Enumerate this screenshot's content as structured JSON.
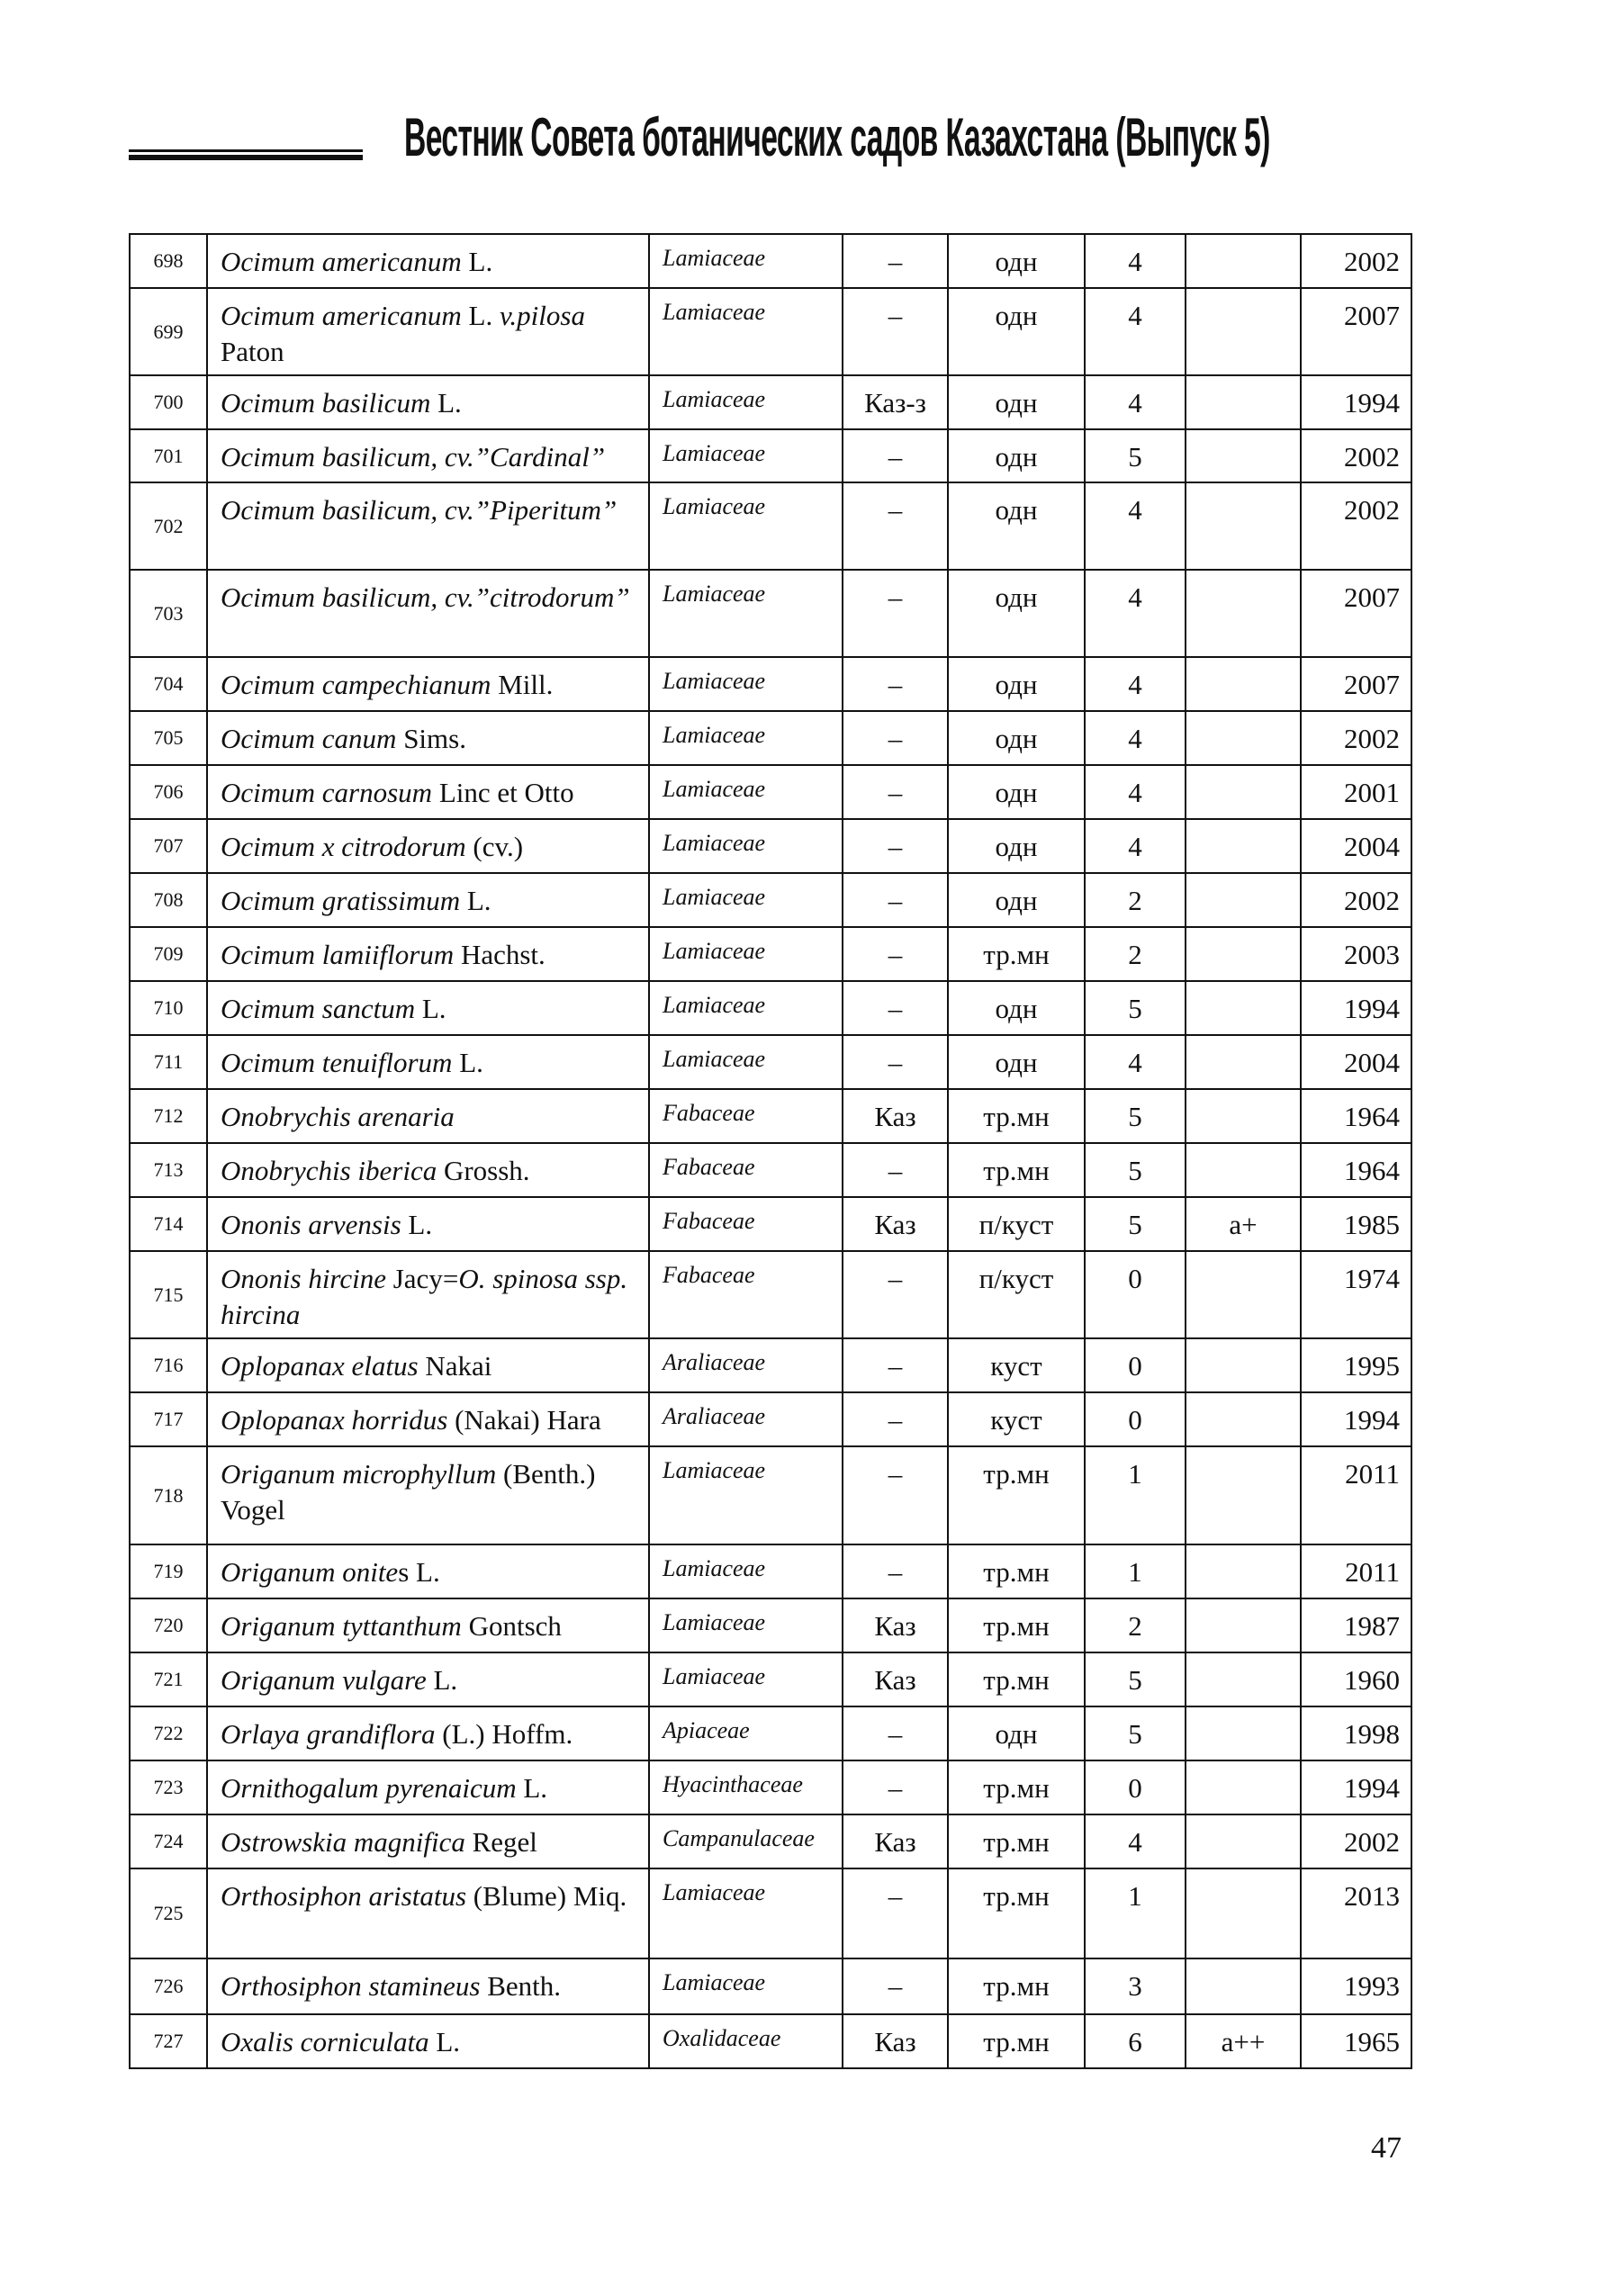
{
  "header": {
    "title": "Вестник Совета ботанических садов Казахстана (Выпуск 5)"
  },
  "page_number": "47",
  "rows": [
    {
      "n": "698",
      "name": [
        [
          "Ocimum americanum",
          1
        ],
        [
          " L.",
          0
        ]
      ],
      "family": "Lamiaceae",
      "status": "–",
      "form": "одн",
      "score": "4",
      "mark": "",
      "year": "2002",
      "h": 60
    },
    {
      "n": "699",
      "name": [
        [
          "Ocimum americanum",
          1
        ],
        [
          " L. ",
          0
        ],
        [
          "v.pilosa",
          1
        ],
        [
          " Paton",
          0
        ]
      ],
      "family": "Lamiaceae",
      "status": "–",
      "form": "одн",
      "score": "4",
      "mark": "",
      "year": "2007",
      "h": 97
    },
    {
      "n": "700",
      "name": [
        [
          "Ocimum basilicum",
          1
        ],
        [
          " L.",
          0
        ]
      ],
      "family": "Lamiaceae",
      "status": "Каз-з",
      "form": "одн",
      "score": "4",
      "mark": "",
      "year": "1994",
      "h": 60
    },
    {
      "n": "701",
      "name": [
        [
          "Ocimum basilicum, cv.”Cardinal”",
          1
        ]
      ],
      "family": "Lamiaceae",
      "status": "–",
      "form": "одн",
      "score": "5",
      "mark": "",
      "year": "2002",
      "h": 59
    },
    {
      "n": "702",
      "name": [
        [
          "Ocimum basilicum, cv.”Piperitum”",
          1
        ]
      ],
      "family": "Lamiaceae",
      "status": "–",
      "form": "одн",
      "score": "4",
      "mark": "",
      "year": "2002",
      "h": 97
    },
    {
      "n": "703",
      "name": [
        [
          "Ocimum basilicum, cv.”citrodorum”",
          1
        ]
      ],
      "family": "Lamiaceae",
      "status": "–",
      "form": "одн",
      "score": "4",
      "mark": "",
      "year": "2007",
      "h": 97
    },
    {
      "n": "704",
      "name": [
        [
          "Ocimum campechianum",
          1
        ],
        [
          " Mill.",
          0
        ]
      ],
      "family": "Lamiaceae",
      "status": "–",
      "form": "одн",
      "score": "4",
      "mark": "",
      "year": "2007",
      "h": 60
    },
    {
      "n": "705",
      "name": [
        [
          "Ocimum canum",
          1
        ],
        [
          " Sims.",
          0
        ]
      ],
      "family": "Lamiaceae",
      "status": "–",
      "form": "одн",
      "score": "4",
      "mark": "",
      "year": "2002",
      "h": 60
    },
    {
      "n": "706",
      "name": [
        [
          "Ocimum carnosum",
          1
        ],
        [
          " Linc et Otto",
          0
        ]
      ],
      "family": "Lamiaceae",
      "status": "–",
      "form": "одн",
      "score": "4",
      "mark": "",
      "year": "2001",
      "h": 60
    },
    {
      "n": "707",
      "name": [
        [
          "Ocimum x citrodorum",
          1
        ],
        [
          " (cv.)",
          0
        ]
      ],
      "family": "Lamiaceae",
      "status": "–",
      "form": "одн",
      "score": "4",
      "mark": "",
      "year": "2004",
      "h": 60
    },
    {
      "n": "708",
      "name": [
        [
          "Ocimum gratissimum",
          1
        ],
        [
          " L.",
          0
        ]
      ],
      "family": "Lamiaceae",
      "status": "–",
      "form": "одн",
      "score": "2",
      "mark": "",
      "year": "2002",
      "h": 60
    },
    {
      "n": "709",
      "name": [
        [
          "Ocimum lamiiflorum",
          1
        ],
        [
          " Hachst.",
          0
        ]
      ],
      "family": "Lamiaceae",
      "status": "–",
      "form": "тр.мн",
      "score": "2",
      "mark": "",
      "year": "2003",
      "h": 60
    },
    {
      "n": "710",
      "name": [
        [
          "Ocimum sanctum",
          1
        ],
        [
          " L.",
          0
        ]
      ],
      "family": "Lamiaceae",
      "status": "–",
      "form": "одн",
      "score": "5",
      "mark": "",
      "year": "1994",
      "h": 60
    },
    {
      "n": "711",
      "name": [
        [
          "Ocimum tenuiflorum",
          1
        ],
        [
          " L.",
          0
        ]
      ],
      "family": "Lamiaceae",
      "status": "–",
      "form": "одн",
      "score": "4",
      "mark": "",
      "year": "2004",
      "h": 60
    },
    {
      "n": "712",
      "name": [
        [
          "Onobrychis arenaria",
          1
        ]
      ],
      "family": "Fabaceae",
      "status": "Каз",
      "form": "тр.мн",
      "score": "5",
      "mark": "",
      "year": "1964",
      "h": 60
    },
    {
      "n": "713",
      "name": [
        [
          "Onobrychis iberica",
          1
        ],
        [
          " Grossh.",
          0
        ]
      ],
      "family": "Fabaceae",
      "status": "–",
      "form": "тр.мн",
      "score": "5",
      "mark": "",
      "year": "1964",
      "h": 60
    },
    {
      "n": "714",
      "name": [
        [
          "Ononis arvensis",
          1
        ],
        [
          " L.",
          0
        ]
      ],
      "family": "Fabaceae",
      "status": "Каз",
      "form": "п/куст",
      "score": "5",
      "mark": "a+",
      "year": "1985",
      "h": 60
    },
    {
      "n": "715",
      "name": [
        [
          "Ononis hircine",
          1
        ],
        [
          " Jacy=",
          0
        ],
        [
          "O. spinosa ssp. hircina",
          1
        ]
      ],
      "family": "Fabaceae",
      "status": "–",
      "form": "п/куст",
      "score": "0",
      "mark": "",
      "year": "1974",
      "h": 97
    },
    {
      "n": "716",
      "name": [
        [
          "Oplopanax elatus",
          1
        ],
        [
          " Nakai",
          0
        ]
      ],
      "family": "Araliaceae",
      "status": "–",
      "form": "куст",
      "score": "0",
      "mark": "",
      "year": "1995",
      "h": 60
    },
    {
      "n": "717",
      "name": [
        [
          "Oplopanax horridus",
          1
        ],
        [
          " (Nakai) Hara",
          0
        ]
      ],
      "family": "Araliaceae",
      "status": "–",
      "form": "куст",
      "score": "0",
      "mark": "",
      "year": "1994",
      "h": 60
    },
    {
      "n": "718",
      "name": [
        [
          "Origanum microphyllum",
          1
        ],
        [
          " (Benth.) Vogel",
          0
        ]
      ],
      "family": "Lamiaceae",
      "status": "–",
      "form": "тр.мн",
      "score": "1",
      "mark": "",
      "year": "2011",
      "h": 109
    },
    {
      "n": "719",
      "name": [
        [
          "Origanum onite",
          1
        ],
        [
          "s L.",
          0
        ]
      ],
      "family": "Lamiaceae",
      "status": "–",
      "form": "тр.мн",
      "score": "1",
      "mark": "",
      "year": "2011",
      "h": 60
    },
    {
      "n": "720",
      "name": [
        [
          "Origanum tyttanthum",
          1
        ],
        [
          " Gontsch",
          0
        ]
      ],
      "family": "Lamiaceae",
      "status": "Каз",
      "form": "тр.мн",
      "score": "2",
      "mark": "",
      "year": "1987",
      "h": 60
    },
    {
      "n": "721",
      "name": [
        [
          "Origanum vulgare",
          1
        ],
        [
          " L.",
          0
        ]
      ],
      "family": "Lamiaceae",
      "status": "Каз",
      "form": "тр.мн",
      "score": "5",
      "mark": "",
      "year": "1960",
      "h": 60
    },
    {
      "n": "722",
      "name": [
        [
          "Orlaya grandiflora",
          1
        ],
        [
          " (L.) Hoffm.",
          0
        ]
      ],
      "family": "Apiaceae",
      "status": "–",
      "form": "одн",
      "score": "5",
      "mark": "",
      "year": "1998",
      "h": 60
    },
    {
      "n": "723",
      "name": [
        [
          "Ornithogalum pyrenaicum",
          1
        ],
        [
          " L.",
          0
        ]
      ],
      "family": "Hyacinthaceae",
      "status": "–",
      "form": "тр.мн",
      "score": "0",
      "mark": "",
      "year": "1994",
      "h": 60
    },
    {
      "n": "724",
      "name": [
        [
          "Ostrowskia magnifica",
          1
        ],
        [
          " Regel",
          0
        ]
      ],
      "family": "Campanulaceae",
      "status": "Каз",
      "form": "тр.мн",
      "score": "4",
      "mark": "",
      "year": "2002",
      "h": 60
    },
    {
      "n": "725",
      "name": [
        [
          "Orthosiphon aristatus",
          1
        ],
        [
          " (Blume) Miq.",
          0
        ]
      ],
      "family": "Lamiaceae",
      "status": "–",
      "form": "тр.мн",
      "score": "1",
      "mark": "",
      "year": "2013",
      "h": 100
    },
    {
      "n": "726",
      "name": [
        [
          "Orthosiphon stamineus",
          1
        ],
        [
          " Benth.",
          0
        ]
      ],
      "family": "Lamiaceae",
      "status": "–",
      "form": "тр.мн",
      "score": "3",
      "mark": "",
      "year": "1993",
      "h": 62
    },
    {
      "n": "727",
      "name": [
        [
          "Oxalis corniculata",
          1
        ],
        [
          " L.",
          0
        ]
      ],
      "family": "Oxalidaceae",
      "status": "Каз",
      "form": "тр.мн",
      "score": "6",
      "mark": "a++",
      "year": "1965",
      "h": 60
    }
  ]
}
